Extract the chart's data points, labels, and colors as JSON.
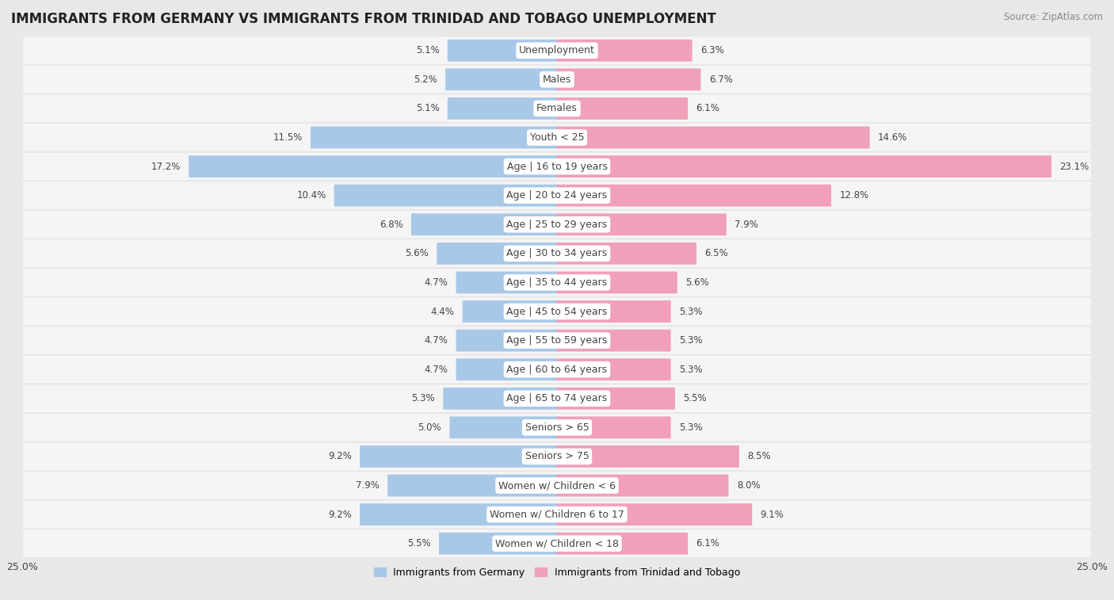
{
  "title": "IMMIGRANTS FROM GERMANY VS IMMIGRANTS FROM TRINIDAD AND TOBAGO UNEMPLOYMENT",
  "source": "Source: ZipAtlas.com",
  "categories": [
    "Unemployment",
    "Males",
    "Females",
    "Youth < 25",
    "Age | 16 to 19 years",
    "Age | 20 to 24 years",
    "Age | 25 to 29 years",
    "Age | 30 to 34 years",
    "Age | 35 to 44 years",
    "Age | 45 to 54 years",
    "Age | 55 to 59 years",
    "Age | 60 to 64 years",
    "Age | 65 to 74 years",
    "Seniors > 65",
    "Seniors > 75",
    "Women w/ Children < 6",
    "Women w/ Children 6 to 17",
    "Women w/ Children < 18"
  ],
  "germany_values": [
    5.1,
    5.2,
    5.1,
    11.5,
    17.2,
    10.4,
    6.8,
    5.6,
    4.7,
    4.4,
    4.7,
    4.7,
    5.3,
    5.0,
    9.2,
    7.9,
    9.2,
    5.5
  ],
  "trinidad_values": [
    6.3,
    6.7,
    6.1,
    14.6,
    23.1,
    12.8,
    7.9,
    6.5,
    5.6,
    5.3,
    5.3,
    5.3,
    5.5,
    5.3,
    8.5,
    8.0,
    9.1,
    6.1
  ],
  "germany_color": "#a8c8e8",
  "trinidad_color": "#f0a0b8",
  "background_color": "#e8e8e8",
  "row_color_light": "#f5f5f5",
  "row_color_dark": "#e0e0e0",
  "label_bg_color": "#ffffff",
  "xlim": 25.0,
  "bar_height": 0.72,
  "legend_germany": "Immigrants from Germany",
  "legend_trinidad": "Immigrants from Trinidad and Tobago",
  "title_fontsize": 12,
  "label_fontsize": 9,
  "value_fontsize": 8.5,
  "source_fontsize": 8.5
}
